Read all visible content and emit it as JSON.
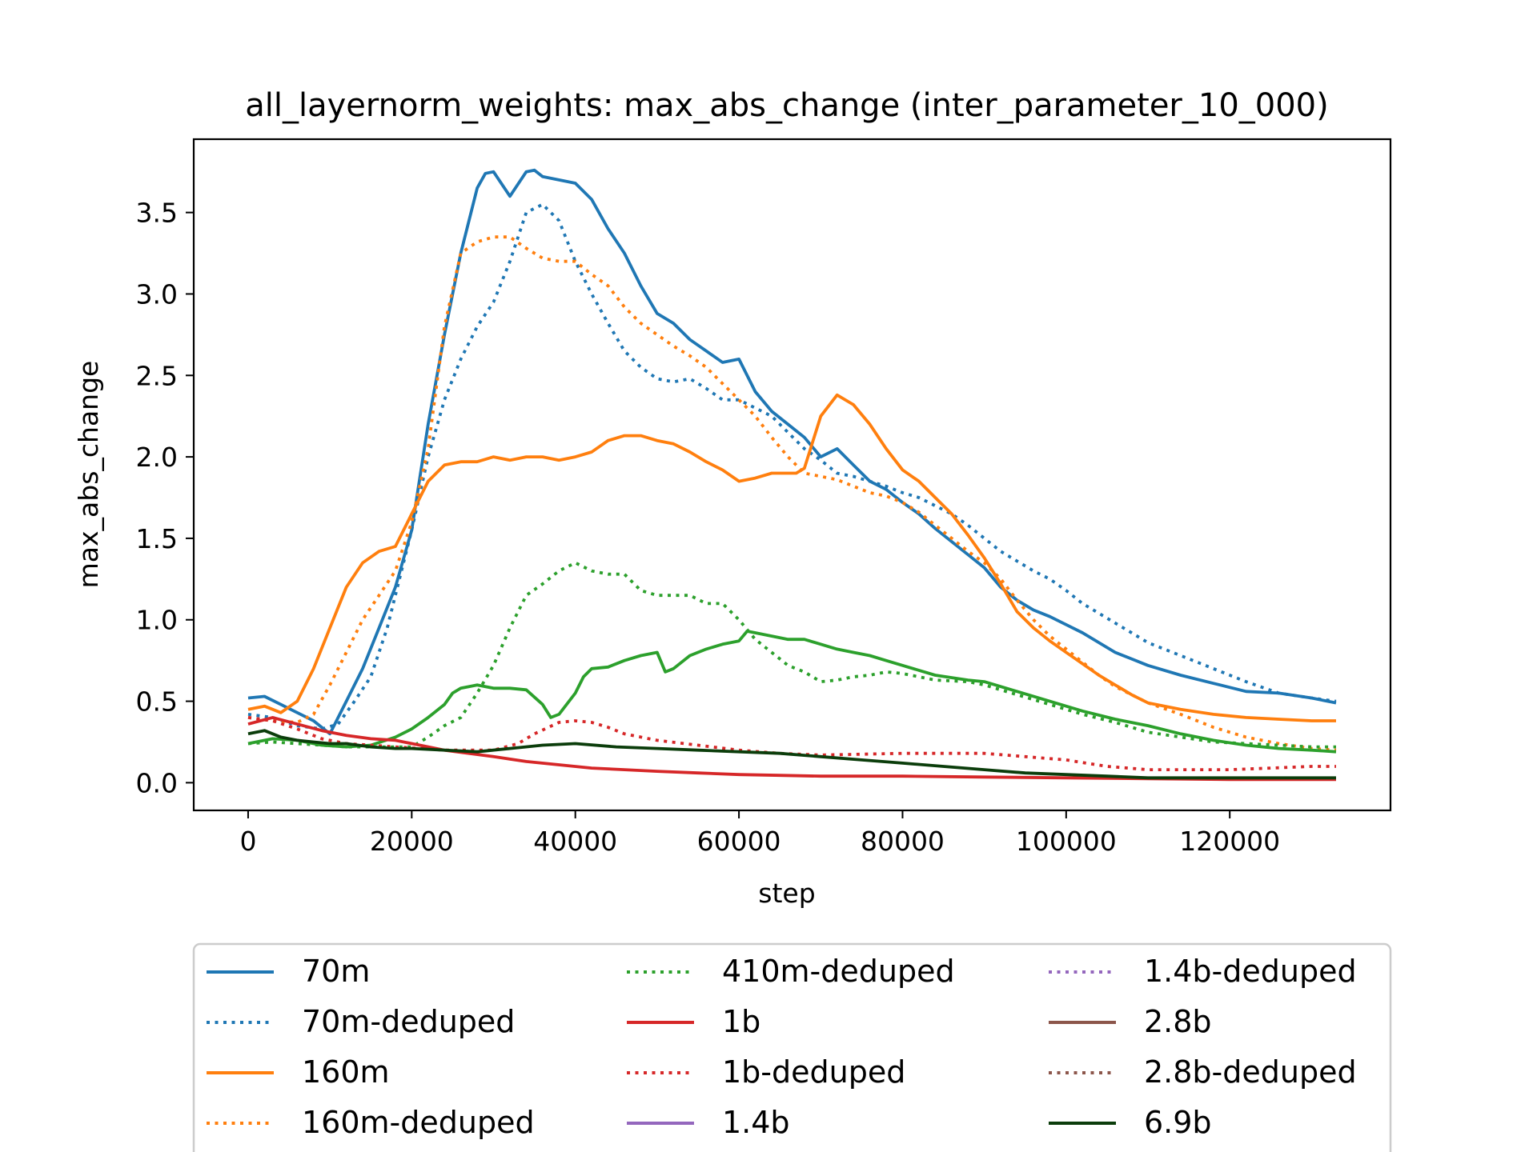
{
  "chart_data": {
    "type": "line",
    "title": "all_layernorm_weights: max_abs_change (inter_parameter_10_000)",
    "xlabel": "step",
    "ylabel": "max_abs_change",
    "xlim": [
      -6650,
      139650
    ],
    "ylim": [
      -0.17,
      3.95
    ],
    "xticks": [
      0,
      20000,
      40000,
      60000,
      80000,
      100000,
      120000
    ],
    "xtick_labels": [
      "0",
      "20000",
      "40000",
      "60000",
      "80000",
      "100000",
      "120000"
    ],
    "yticks": [
      0.0,
      0.5,
      1.0,
      1.5,
      2.0,
      2.5,
      3.0,
      3.5
    ],
    "ytick_labels": [
      "0.0",
      "0.5",
      "1.0",
      "1.5",
      "2.0",
      "2.5",
      "3.0",
      "3.5"
    ],
    "grid": false,
    "legend": {
      "placement": "below plot",
      "columns": 3
    },
    "series": [
      {
        "name": "70m",
        "color": "#1f77b4",
        "style": "solid",
        "x": [
          0,
          2000,
          4000,
          6000,
          8000,
          10000,
          12000,
          14000,
          16000,
          18000,
          20000,
          22000,
          24000,
          26000,
          28000,
          29000,
          30000,
          32000,
          34000,
          35000,
          36000,
          38000,
          40000,
          42000,
          44000,
          46000,
          48000,
          50000,
          52000,
          54000,
          56000,
          58000,
          60000,
          62000,
          64000,
          66000,
          68000,
          70000,
          72000,
          74000,
          76000,
          78000,
          80000,
          82000,
          84000,
          86000,
          88000,
          90000,
          92000,
          94000,
          96000,
          98000,
          100000,
          102000,
          104000,
          106000,
          108000,
          110000,
          114000,
          118000,
          122000,
          126000,
          130000,
          133000
        ],
        "y": [
          0.52,
          0.53,
          0.48,
          0.43,
          0.38,
          0.3,
          0.5,
          0.7,
          0.95,
          1.2,
          1.55,
          2.2,
          2.75,
          3.25,
          3.65,
          3.74,
          3.75,
          3.6,
          3.75,
          3.76,
          3.72,
          3.7,
          3.68,
          3.58,
          3.4,
          3.25,
          3.05,
          2.88,
          2.82,
          2.72,
          2.65,
          2.58,
          2.6,
          2.4,
          2.28,
          2.2,
          2.12,
          2.0,
          2.05,
          1.95,
          1.85,
          1.8,
          1.72,
          1.65,
          1.56,
          1.48,
          1.4,
          1.32,
          1.2,
          1.12,
          1.06,
          1.02,
          0.97,
          0.92,
          0.86,
          0.8,
          0.76,
          0.72,
          0.66,
          0.61,
          0.56,
          0.55,
          0.52,
          0.49
        ]
      },
      {
        "name": "70m-deduped",
        "color": "#1f77b4",
        "style": "dotted",
        "x": [
          0,
          3000,
          6000,
          9000,
          11000,
          13000,
          15000,
          17000,
          20000,
          22000,
          24000,
          26000,
          28000,
          30000,
          32000,
          34000,
          36000,
          38000,
          40000,
          42000,
          44000,
          46000,
          48000,
          50000,
          52000,
          54000,
          56000,
          58000,
          60000,
          62000,
          64000,
          66000,
          68000,
          70000,
          72000,
          74000,
          76000,
          78000,
          80000,
          82000,
          84000,
          86000,
          88000,
          90000,
          92000,
          94000,
          96000,
          98000,
          100000,
          102000,
          104000,
          106000,
          108000,
          110000,
          114000,
          118000,
          122000,
          126000,
          130000,
          133000
        ],
        "y": [
          0.42,
          0.4,
          0.35,
          0.33,
          0.36,
          0.5,
          0.65,
          0.95,
          1.55,
          2.0,
          2.35,
          2.6,
          2.8,
          2.95,
          3.2,
          3.5,
          3.55,
          3.45,
          3.2,
          3.0,
          2.82,
          2.65,
          2.55,
          2.48,
          2.46,
          2.48,
          2.42,
          2.35,
          2.35,
          2.3,
          2.25,
          2.15,
          2.05,
          1.98,
          1.9,
          1.88,
          1.85,
          1.82,
          1.78,
          1.75,
          1.7,
          1.65,
          1.58,
          1.5,
          1.42,
          1.36,
          1.3,
          1.25,
          1.18,
          1.1,
          1.04,
          0.98,
          0.92,
          0.86,
          0.78,
          0.7,
          0.62,
          0.55,
          0.52,
          0.5
        ]
      },
      {
        "name": "160m",
        "color": "#ff7f0e",
        "style": "solid",
        "x": [
          0,
          2000,
          4000,
          6000,
          8000,
          10000,
          12000,
          14000,
          16000,
          18000,
          20000,
          22000,
          24000,
          26000,
          28000,
          30000,
          32000,
          34000,
          36000,
          38000,
          40000,
          42000,
          44000,
          46000,
          48000,
          50000,
          52000,
          54000,
          56000,
          58000,
          60000,
          62000,
          64000,
          66000,
          67000,
          68000,
          70000,
          72000,
          74000,
          76000,
          78000,
          80000,
          82000,
          84000,
          86000,
          88000,
          90000,
          92000,
          94000,
          96000,
          98000,
          100000,
          102000,
          104000,
          106000,
          108000,
          110000,
          114000,
          118000,
          122000,
          126000,
          130000,
          133000
        ],
        "y": [
          0.45,
          0.47,
          0.43,
          0.5,
          0.7,
          0.95,
          1.2,
          1.35,
          1.42,
          1.45,
          1.65,
          1.85,
          1.95,
          1.97,
          1.97,
          2.0,
          1.98,
          2.0,
          2.0,
          1.98,
          2.0,
          2.03,
          2.1,
          2.13,
          2.13,
          2.1,
          2.08,
          2.03,
          1.97,
          1.92,
          1.85,
          1.87,
          1.9,
          1.9,
          1.9,
          1.93,
          2.25,
          2.38,
          2.32,
          2.2,
          2.05,
          1.92,
          1.85,
          1.75,
          1.65,
          1.52,
          1.38,
          1.22,
          1.05,
          0.95,
          0.87,
          0.8,
          0.73,
          0.66,
          0.6,
          0.54,
          0.49,
          0.45,
          0.42,
          0.4,
          0.39,
          0.38,
          0.38
        ]
      },
      {
        "name": "160m-deduped",
        "color": "#ff7f0e",
        "style": "dotted",
        "x": [
          0,
          3000,
          6000,
          8000,
          10000,
          12000,
          14000,
          16000,
          18000,
          20000,
          22000,
          24000,
          26000,
          28000,
          30000,
          32000,
          34000,
          36000,
          38000,
          40000,
          42000,
          44000,
          46000,
          48000,
          50000,
          52000,
          54000,
          56000,
          58000,
          60000,
          62000,
          64000,
          66000,
          68000,
          70000,
          72000,
          74000,
          76000,
          78000,
          80000,
          82000,
          84000,
          86000,
          88000,
          90000,
          92000,
          94000,
          96000,
          98000,
          100000,
          102000,
          104000,
          106000,
          108000,
          110000,
          114000,
          118000,
          122000,
          126000,
          130000,
          133000
        ],
        "y": [
          0.4,
          0.38,
          0.37,
          0.42,
          0.6,
          0.8,
          1.0,
          1.15,
          1.3,
          1.6,
          2.05,
          2.8,
          3.25,
          3.32,
          3.35,
          3.35,
          3.28,
          3.22,
          3.2,
          3.2,
          3.12,
          3.05,
          2.92,
          2.82,
          2.75,
          2.68,
          2.62,
          2.55,
          2.45,
          2.35,
          2.25,
          2.12,
          2.0,
          1.9,
          1.88,
          1.86,
          1.82,
          1.78,
          1.76,
          1.72,
          1.66,
          1.58,
          1.5,
          1.42,
          1.35,
          1.25,
          1.12,
          1.0,
          0.9,
          0.82,
          0.74,
          0.66,
          0.59,
          0.54,
          0.49,
          0.42,
          0.34,
          0.28,
          0.24,
          0.21,
          0.2
        ]
      },
      {
        "name": "410m-deduped",
        "color": "#2ca02c",
        "style": "dotted",
        "x": [
          0,
          3000,
          6000,
          9000,
          12000,
          15000,
          18000,
          20000,
          22000,
          24000,
          26000,
          28000,
          30000,
          32000,
          34000,
          36000,
          38000,
          40000,
          42000,
          44000,
          46000,
          48000,
          50000,
          52000,
          54000,
          56000,
          58000,
          60000,
          62000,
          64000,
          66000,
          68000,
          70000,
          72000,
          74000,
          76000,
          78000,
          80000,
          84000,
          88000,
          90000,
          94000,
          98000,
          102000,
          106000,
          110000,
          114000,
          118000,
          122000,
          126000,
          130000,
          133000
        ],
        "y": [
          0.24,
          0.25,
          0.24,
          0.23,
          0.22,
          0.22,
          0.22,
          0.22,
          0.28,
          0.35,
          0.4,
          0.55,
          0.72,
          0.95,
          1.15,
          1.22,
          1.3,
          1.35,
          1.3,
          1.28,
          1.28,
          1.18,
          1.15,
          1.15,
          1.15,
          1.1,
          1.1,
          1.0,
          0.88,
          0.8,
          0.72,
          0.68,
          0.62,
          0.63,
          0.65,
          0.66,
          0.68,
          0.67,
          0.63,
          0.62,
          0.6,
          0.54,
          0.48,
          0.42,
          0.37,
          0.31,
          0.28,
          0.25,
          0.24,
          0.23,
          0.22,
          0.22
        ]
      },
      {
        "name": "410m",
        "color": "#2ca02c",
        "style": "solid",
        "x": [
          0,
          3000,
          6000,
          9000,
          12000,
          15000,
          18000,
          20000,
          22000,
          24000,
          25000,
          26000,
          28000,
          30000,
          32000,
          34000,
          36000,
          37000,
          38000,
          40000,
          41000,
          42000,
          44000,
          46000,
          48000,
          50000,
          51000,
          52000,
          54000,
          56000,
          58000,
          60000,
          61000,
          62000,
          64000,
          66000,
          68000,
          70000,
          72000,
          74000,
          76000,
          78000,
          80000,
          84000,
          88000,
          90000,
          94000,
          98000,
          102000,
          106000,
          110000,
          114000,
          118000,
          122000,
          126000,
          130000,
          133000
        ],
        "y": [
          0.24,
          0.27,
          0.26,
          0.23,
          0.22,
          0.23,
          0.28,
          0.33,
          0.4,
          0.48,
          0.55,
          0.58,
          0.6,
          0.58,
          0.58,
          0.57,
          0.48,
          0.4,
          0.42,
          0.55,
          0.65,
          0.7,
          0.71,
          0.75,
          0.78,
          0.8,
          0.68,
          0.7,
          0.78,
          0.82,
          0.85,
          0.87,
          0.93,
          0.92,
          0.9,
          0.88,
          0.88,
          0.85,
          0.82,
          0.8,
          0.78,
          0.75,
          0.72,
          0.66,
          0.63,
          0.62,
          0.56,
          0.5,
          0.44,
          0.39,
          0.35,
          0.3,
          0.26,
          0.23,
          0.21,
          0.2,
          0.19
        ]
      },
      {
        "name": "1b",
        "color": "#d62728",
        "style": "solid",
        "x": [
          0,
          3000,
          6000,
          9000,
          12000,
          15000,
          18000,
          21000,
          24000,
          27000,
          30000,
          34000,
          38000,
          42000,
          46000,
          50000,
          55000,
          60000,
          65000,
          70000,
          80000,
          90000,
          100000,
          110000,
          120000,
          133000
        ],
        "y": [
          0.36,
          0.4,
          0.36,
          0.32,
          0.29,
          0.27,
          0.26,
          0.23,
          0.2,
          0.18,
          0.16,
          0.13,
          0.11,
          0.09,
          0.08,
          0.07,
          0.06,
          0.05,
          0.045,
          0.04,
          0.04,
          0.035,
          0.03,
          0.025,
          0.02,
          0.02
        ]
      },
      {
        "name": "1b-deduped",
        "color": "#d62728",
        "style": "dotted",
        "x": [
          0,
          3000,
          6000,
          9000,
          12000,
          15000,
          18000,
          21000,
          24000,
          27000,
          30000,
          33000,
          35000,
          38000,
          40000,
          42000,
          44000,
          46000,
          50000,
          55000,
          60000,
          65000,
          70000,
          80000,
          90000,
          95000,
          100000,
          105000,
          110000,
          120000,
          125000,
          130000,
          133000
        ],
        "y": [
          0.4,
          0.38,
          0.33,
          0.27,
          0.24,
          0.23,
          0.22,
          0.21,
          0.2,
          0.2,
          0.2,
          0.24,
          0.3,
          0.37,
          0.38,
          0.37,
          0.34,
          0.3,
          0.26,
          0.23,
          0.2,
          0.18,
          0.17,
          0.18,
          0.18,
          0.16,
          0.14,
          0.1,
          0.08,
          0.08,
          0.09,
          0.1,
          0.1
        ]
      },
      {
        "name": "1.4b-deduped",
        "color": "#9467bd",
        "style": "dotted",
        "x": [],
        "y": []
      },
      {
        "name": "1.4b",
        "color": "#9467bd",
        "style": "solid",
        "x": [],
        "y": []
      },
      {
        "name": "2.8b",
        "color": "#8c564b",
        "style": "solid",
        "x": [],
        "y": []
      },
      {
        "name": "2.8b-deduped",
        "color": "#8c564b",
        "style": "dotted",
        "x": [],
        "y": []
      },
      {
        "name": "6.9b",
        "color": "#0b3d0b",
        "style": "solid",
        "x": [
          0,
          2000,
          4000,
          6000,
          8000,
          10000,
          12000,
          15000,
          18000,
          20000,
          24000,
          28000,
          32000,
          36000,
          40000,
          45000,
          50000,
          55000,
          60000,
          65000,
          70000,
          75000,
          80000,
          85000,
          90000,
          95000,
          100000,
          105000,
          110000,
          120000,
          130000,
          133000
        ],
        "y": [
          0.3,
          0.32,
          0.28,
          0.26,
          0.25,
          0.24,
          0.24,
          0.22,
          0.21,
          0.21,
          0.2,
          0.19,
          0.21,
          0.23,
          0.24,
          0.22,
          0.21,
          0.2,
          0.19,
          0.18,
          0.16,
          0.14,
          0.12,
          0.1,
          0.08,
          0.06,
          0.05,
          0.04,
          0.03,
          0.03,
          0.03,
          0.03
        ]
      }
    ],
    "legend_order": [
      "70m",
      "70m-deduped",
      "160m",
      "160m-deduped",
      "410m-deduped",
      "1b",
      "1b-deduped",
      "1.4b",
      "1.4b-deduped",
      "2.8b",
      "2.8b-deduped",
      "6.9b"
    ]
  }
}
